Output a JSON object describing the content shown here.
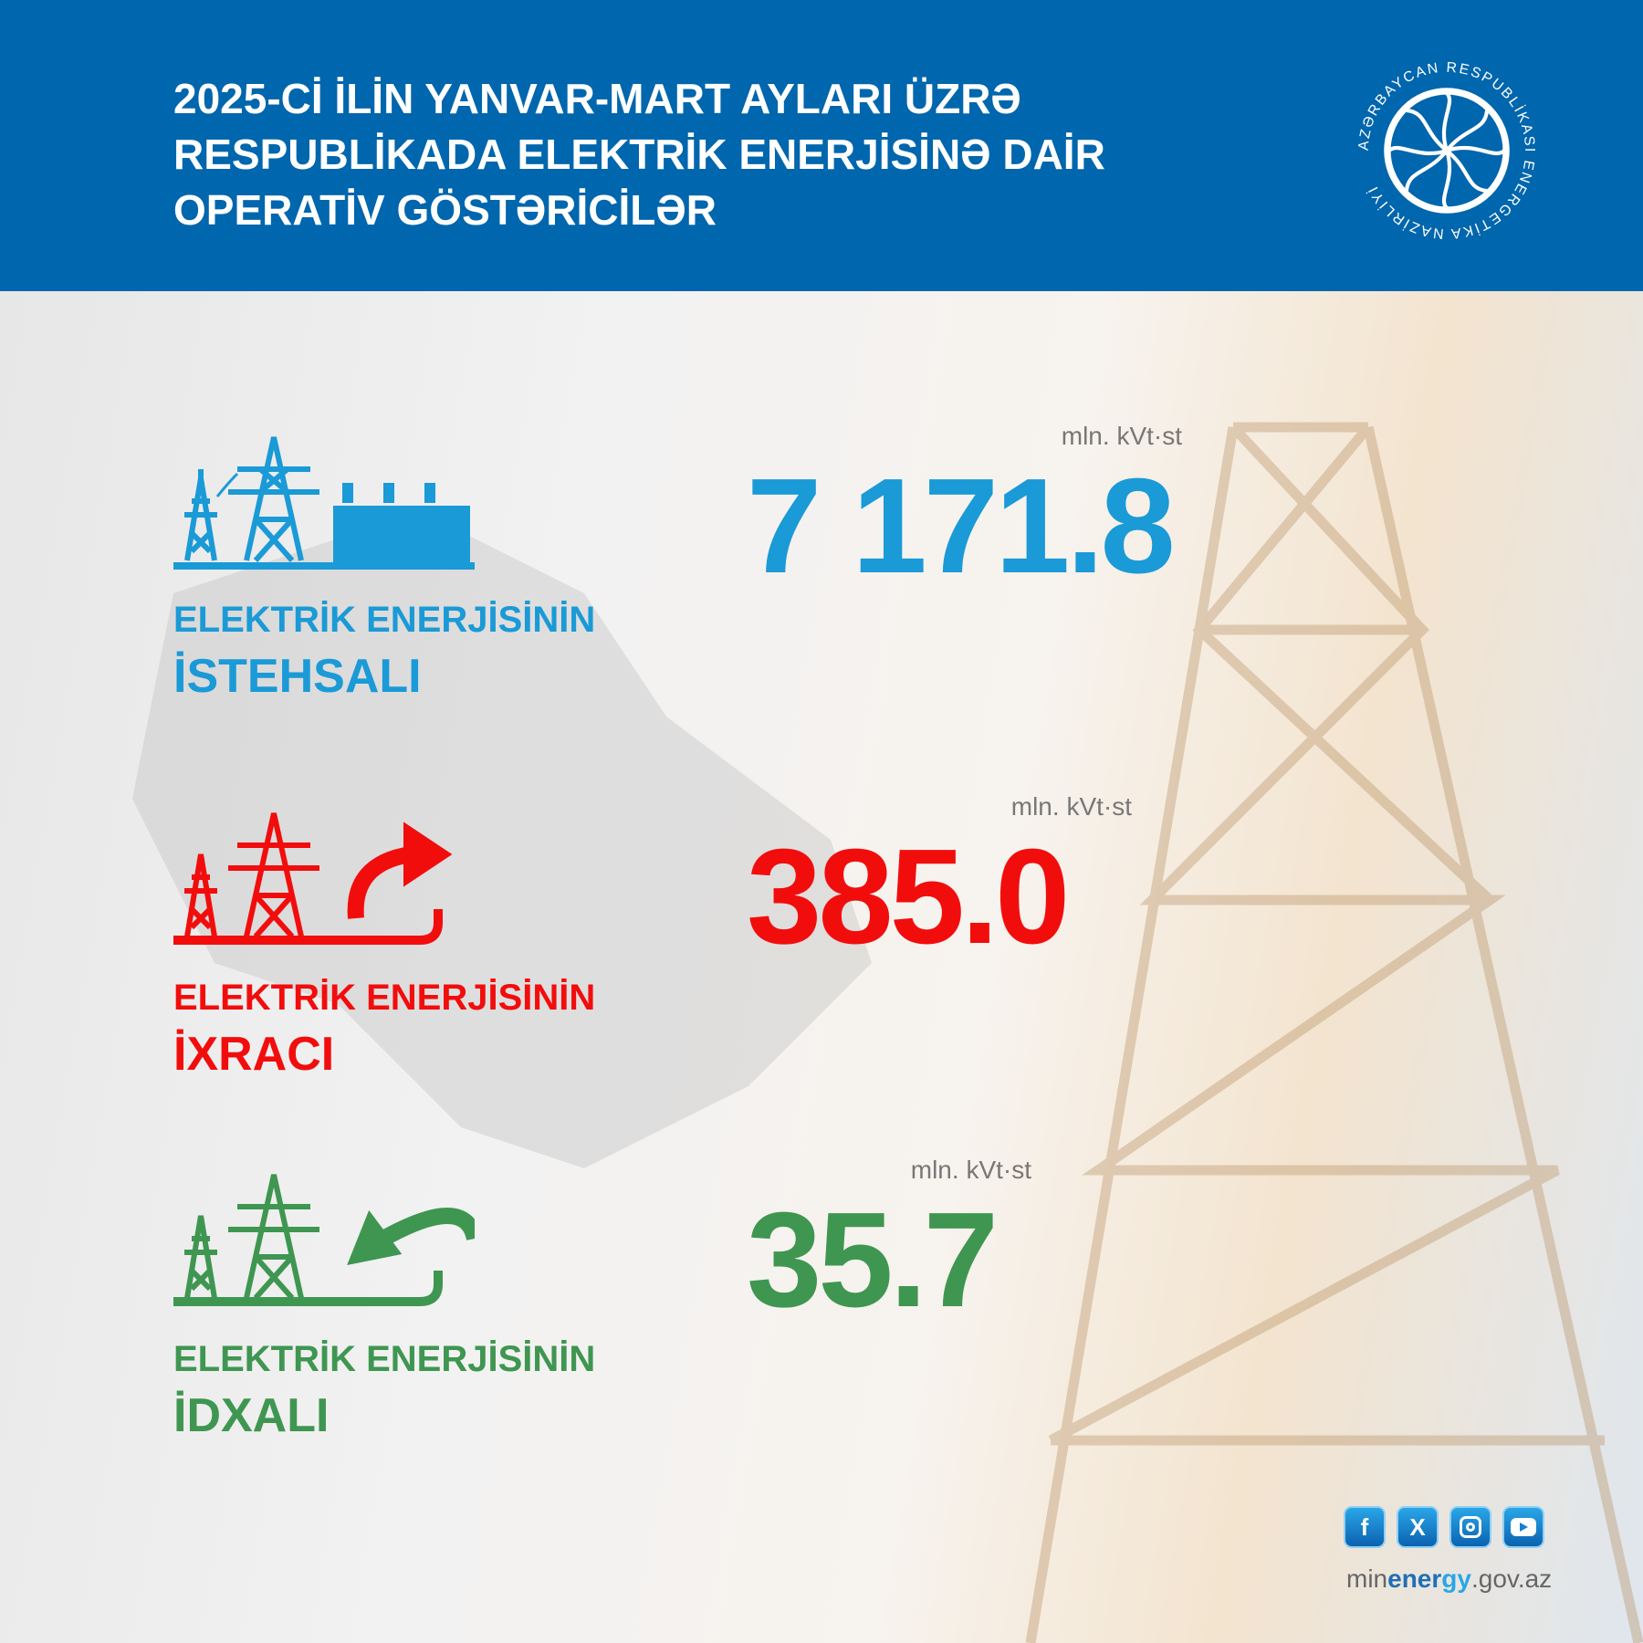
{
  "header": {
    "title_lines": [
      "2025-Cİ İLİN YANVAR-MART AYLARI ÜZRƏ",
      "RESPUBLİKADA ELEKTRİK ENERJİSİNƏ DAİR",
      "OPERATİV GÖSTƏRİCİLƏR"
    ],
    "logo_text": "AZƏRBAYCAN RESPUBLİKASI ENERGETİKA NAZİRLİYİ",
    "color": "#0066ad"
  },
  "stats": [
    {
      "label_line1": "ELEKTRİK ENERJİSİNİN",
      "label_line2": "İSTEHSALI",
      "value": "7 171.8",
      "unit": "mln. kVt·st",
      "color": "#1a9ad6",
      "icon": "power-plant-icon"
    },
    {
      "label_line1": "ELEKTRİK ENERJİSİNİN",
      "label_line2": "İXRACI",
      "value": "385.0",
      "unit": "mln. kVt·st",
      "color": "#f20d0d",
      "icon": "export-arrow-icon"
    },
    {
      "label_line1": "ELEKTRİK ENERJİSİNİN",
      "label_line2": "İDXALI",
      "value": "35.7",
      "unit": "mln. kVt·st",
      "color": "#3f9651",
      "icon": "import-arrow-icon"
    }
  ],
  "footer": {
    "social": [
      "facebook-icon",
      "x-icon",
      "instagram-icon",
      "youtube-icon"
    ],
    "site_prefix": "min",
    "site_energ": "ener",
    "site_gy": "gy",
    "site_suffix": ".gov.az"
  }
}
